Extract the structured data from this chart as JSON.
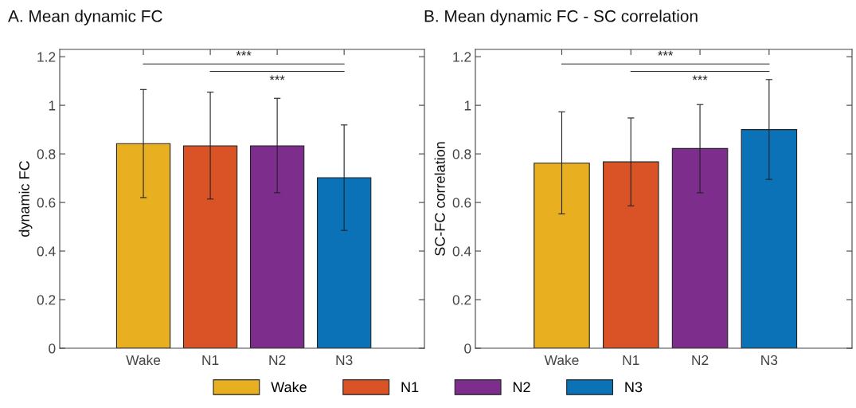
{
  "chart_data": [
    {
      "type": "bar",
      "title": "A. Mean dynamic FC",
      "ylabel": "dynamic FC",
      "categories": [
        "Wake",
        "N1",
        "N2",
        "N3"
      ],
      "series": [
        {
          "name": "Wake",
          "color": "#e8b021",
          "values": [
            0.842,
            null,
            null,
            null
          ],
          "errors": [
            [
              0.62,
              1.065
            ],
            null,
            null,
            null
          ]
        },
        {
          "name": "N1",
          "color": "#da5327",
          "values": [
            null,
            0.833,
            null,
            null
          ],
          "errors": [
            null,
            [
              0.614,
              1.054
            ],
            null,
            null
          ]
        },
        {
          "name": "N2",
          "color": "#7d2e8c",
          "values": [
            null,
            null,
            0.833,
            null
          ],
          "errors": [
            null,
            null,
            [
              0.64,
              1.029
            ],
            null
          ]
        },
        {
          "name": "N3",
          "color": "#0c72b8",
          "values": [
            null,
            null,
            null,
            0.702
          ],
          "errors": [
            null,
            null,
            null,
            [
              0.485,
              0.919
            ]
          ]
        }
      ],
      "ylim": [
        0,
        1.23
      ],
      "yticks": [
        0,
        0.2,
        0.4,
        0.6,
        0.8,
        1,
        1.2
      ],
      "annotations": [
        "***",
        "***"
      ],
      "legend": "bottom",
      "grid": false
    },
    {
      "type": "bar",
      "title": "B. Mean dynamic FC - SC correlation",
      "ylabel": "SC-FC correlation",
      "categories": [
        "Wake",
        "N1",
        "N2",
        "N3"
      ],
      "series": [
        {
          "name": "Wake",
          "color": "#e8b021",
          "values": [
            0.762,
            null,
            null,
            null
          ],
          "errors": [
            [
              0.553,
              0.973
            ],
            null,
            null,
            null
          ]
        },
        {
          "name": "N1",
          "color": "#da5327",
          "values": [
            null,
            0.767,
            null,
            null
          ],
          "errors": [
            null,
            [
              0.586,
              0.948
            ],
            null,
            null
          ]
        },
        {
          "name": "N2",
          "color": "#7d2e8c",
          "values": [
            null,
            null,
            0.822,
            null
          ],
          "errors": [
            null,
            null,
            [
              0.64,
              1.003
            ],
            null
          ]
        },
        {
          "name": "N3",
          "color": "#0c72b8",
          "values": [
            null,
            null,
            null,
            0.9
          ],
          "errors": [
            null,
            null,
            null,
            [
              0.695,
              1.106
            ]
          ]
        }
      ],
      "ylim": [
        0,
        1.23
      ],
      "yticks": [
        0,
        0.2,
        0.4,
        0.6,
        0.8,
        1,
        1.2
      ],
      "annotations": [
        "***",
        "***"
      ],
      "legend": "bottom",
      "grid": false
    }
  ]
}
